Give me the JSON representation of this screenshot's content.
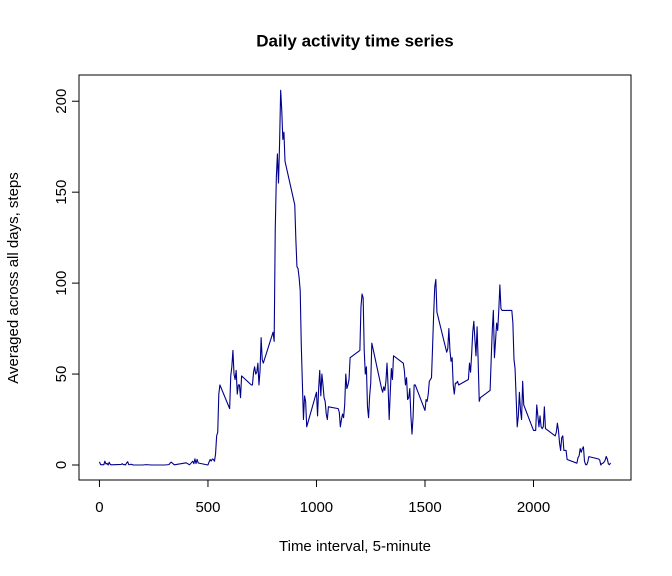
{
  "chart_data": {
    "type": "line",
    "title": "Daily activity time series",
    "x_label": "Time interval, 5-minute",
    "y_label": "Averaged across all days, steps",
    "xlim": [
      -94.2,
      2449.2
    ],
    "ylim": [
      -8.25,
      214.42
    ],
    "xticks": [
      0,
      500,
      1000,
      1500,
      2000
    ],
    "yticks": [
      0,
      50,
      100,
      150,
      200
    ],
    "series": [
      {
        "color": "#00008b",
        "x": [
          0,
          5,
          10,
          15,
          20,
          25,
          30,
          35,
          40,
          45,
          50,
          55,
          100,
          105,
          110,
          115,
          120,
          125,
          130,
          135,
          140,
          145,
          150,
          155,
          200,
          215,
          240,
          300,
          320,
          330,
          345,
          400,
          415,
          430,
          435,
          440,
          445,
          450,
          455,
          500,
          505,
          510,
          515,
          520,
          525,
          530,
          535,
          540,
          545,
          550,
          555,
          600,
          605,
          610,
          615,
          620,
          625,
          630,
          635,
          640,
          645,
          650,
          655,
          700,
          705,
          710,
          715,
          720,
          725,
          730,
          735,
          740,
          745,
          750,
          755,
          800,
          805,
          810,
          815,
          820,
          825,
          830,
          835,
          840,
          845,
          850,
          855,
          900,
          905,
          910,
          915,
          920,
          925,
          930,
          935,
          940,
          945,
          950,
          955,
          1000,
          1005,
          1010,
          1015,
          1020,
          1025,
          1030,
          1035,
          1040,
          1045,
          1050,
          1055,
          1100,
          1105,
          1110,
          1115,
          1120,
          1125,
          1130,
          1135,
          1140,
          1145,
          1150,
          1155,
          1200,
          1205,
          1210,
          1215,
          1220,
          1225,
          1230,
          1235,
          1240,
          1245,
          1250,
          1255,
          1300,
          1305,
          1310,
          1315,
          1320,
          1325,
          1330,
          1335,
          1340,
          1345,
          1350,
          1355,
          1400,
          1405,
          1410,
          1415,
          1420,
          1425,
          1430,
          1435,
          1440,
          1445,
          1450,
          1455,
          1500,
          1505,
          1510,
          1515,
          1520,
          1525,
          1530,
          1535,
          1540,
          1545,
          1550,
          1555,
          1600,
          1605,
          1610,
          1615,
          1620,
          1625,
          1630,
          1635,
          1640,
          1645,
          1650,
          1655,
          1700,
          1705,
          1710,
          1715,
          1720,
          1725,
          1730,
          1735,
          1740,
          1745,
          1750,
          1755,
          1800,
          1805,
          1810,
          1815,
          1820,
          1825,
          1830,
          1835,
          1840,
          1845,
          1850,
          1855,
          1900,
          1905,
          1910,
          1915,
          1920,
          1925,
          1930,
          1935,
          1940,
          1945,
          1950,
          1955,
          2000,
          2005,
          2010,
          2015,
          2020,
          2025,
          2030,
          2035,
          2040,
          2045,
          2050,
          2055,
          2100,
          2105,
          2110,
          2115,
          2120,
          2125,
          2130,
          2135,
          2140,
          2145,
          2150,
          2155,
          2200,
          2205,
          2210,
          2215,
          2220,
          2225,
          2230,
          2235,
          2240,
          2245,
          2250,
          2255,
          2300,
          2305,
          2310,
          2315,
          2320,
          2325,
          2330,
          2335,
          2340,
          2345,
          2350,
          2355
        ],
        "values": [
          1.7,
          0.3,
          0.1,
          0.2,
          0.1,
          2.1,
          0.5,
          0.9,
          0,
          1.5,
          0.3,
          0.1,
          0.3,
          0.7,
          0.2,
          0.3,
          0,
          1.1,
          1.8,
          0.2,
          0.2,
          0.4,
          0.3,
          0,
          0,
          0.2,
          0,
          0,
          0.2,
          1.6,
          0.1,
          1.2,
          0.1,
          2.1,
          0.7,
          3.4,
          0.8,
          3.1,
          1.1,
          0,
          1.6,
          3,
          2.2,
          3.3,
          3,
          2.1,
          6,
          16,
          18,
          39,
          44,
          31,
          49,
          54,
          63,
          50,
          47,
          52,
          39,
          44,
          44,
          37,
          49,
          44,
          44,
          51,
          54,
          50,
          51,
          56,
          44,
          52,
          70,
          58,
          56,
          73,
          68,
          129,
          158,
          171,
          155,
          177,
          206,
          195,
          179,
          183,
          167,
          143,
          124,
          109,
          108,
          103,
          96,
          66,
          45,
          25,
          38,
          35,
          21,
          40,
          27,
          42,
          52,
          38,
          50,
          44,
          37,
          35,
          28,
          25,
          32,
          31,
          29,
          21,
          25,
          28,
          26,
          33,
          50,
          42,
          44,
          47,
          59,
          63,
          87,
          94,
          92,
          63,
          50,
          54,
          32,
          26,
          38,
          45,
          67,
          42,
          40,
          43,
          41,
          46,
          56,
          43,
          25,
          40,
          53,
          47,
          60,
          56,
          52,
          44,
          48,
          36,
          37,
          42,
          27,
          17,
          26,
          44,
          44,
          30,
          36,
          35,
          39,
          46,
          47,
          48,
          65,
          83,
          98,
          102,
          84,
          62,
          64,
          75,
          63,
          57,
          59,
          44,
          39,
          45,
          45,
          46,
          44,
          47,
          56,
          51,
          61,
          73,
          79,
          69,
          60,
          76,
          57,
          35,
          37,
          41,
          58,
          74,
          85,
          59,
          68,
          78,
          74,
          85,
          99,
          86,
          85,
          85,
          78,
          58,
          53,
          37,
          21,
          27,
          40,
          30,
          25,
          46,
          33,
          19,
          19,
          19,
          33,
          27,
          21,
          27,
          21,
          20,
          21,
          32,
          20,
          16,
          18,
          23,
          19,
          12,
          8,
          15,
          16,
          8,
          8,
          8,
          3,
          1,
          4,
          5,
          9,
          7,
          9,
          10,
          2,
          0.3,
          0.1,
          1.6,
          4.6,
          3.3,
          2.8,
          0,
          0.8,
          1,
          1.6,
          2.6,
          4.7,
          3.3,
          0.6,
          0.2,
          1.1
        ]
      }
    ]
  }
}
